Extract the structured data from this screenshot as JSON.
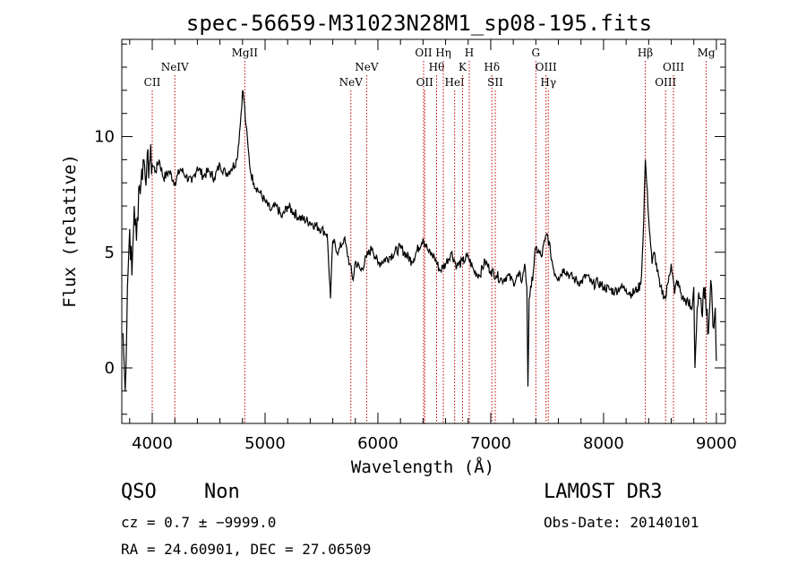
{
  "chart_data": {
    "type": "line",
    "title": "spec-56659-M31023N28M1_sp08-195.fits",
    "xlabel": "Wavelength (Å)",
    "ylabel": "Flux (relative)",
    "xlim": [
      3730,
      9080
    ],
    "ylim": [
      -2.4,
      14.2
    ],
    "xticks": [
      4000,
      5000,
      6000,
      7000,
      8000,
      9000
    ],
    "yticks": [
      0,
      5,
      10
    ],
    "grid": false,
    "series": [
      {
        "name": "flux",
        "x": [
          3740,
          3760,
          3780,
          3800,
          3820,
          3840,
          3860,
          3880,
          3900,
          3920,
          3950,
          3980,
          4000,
          4030,
          4060,
          4100,
          4150,
          4200,
          4250,
          4300,
          4350,
          4400,
          4450,
          4500,
          4550,
          4600,
          4650,
          4700,
          4750,
          4780,
          4800,
          4815,
          4830,
          4850,
          4870,
          4900,
          4950,
          5000,
          5050,
          5100,
          5150,
          5200,
          5300,
          5400,
          5500,
          5550,
          5580,
          5600,
          5650,
          5700,
          5750,
          5780,
          5800,
          5850,
          5900,
          5950,
          6000,
          6100,
          6200,
          6300,
          6400,
          6450,
          6500,
          6550,
          6600,
          6650,
          6700,
          6750,
          6800,
          6850,
          6900,
          6950,
          7000,
          7050,
          7100,
          7150,
          7200,
          7250,
          7280,
          7300,
          7310,
          7320,
          7330,
          7340,
          7360,
          7400,
          7450,
          7480,
          7500,
          7530,
          7560,
          7600,
          7650,
          7700,
          7750,
          7800,
          7850,
          7900,
          7950,
          8000,
          8050,
          8100,
          8150,
          8200,
          8250,
          8300,
          8330,
          8350,
          8370,
          8400,
          8430,
          8450,
          8500,
          8550,
          8580,
          8600,
          8630,
          8650,
          8700,
          8750,
          8780,
          8800,
          8810,
          8830,
          8850,
          8870,
          8900,
          8930,
          8950,
          8970,
          8990,
          9000
        ],
        "y": [
          1.5,
          -1.0,
          3.5,
          6.0,
          4.0,
          7.0,
          5.5,
          7.8,
          8.0,
          9.0,
          8.5,
          9.0,
          8.8,
          8.5,
          9.0,
          8.2,
          8.5,
          8.0,
          8.6,
          8.3,
          8.0,
          8.7,
          8.3,
          8.5,
          8.2,
          8.8,
          8.4,
          8.6,
          9.0,
          10.5,
          12.0,
          11.5,
          10.5,
          9.5,
          8.5,
          8.0,
          7.6,
          7.2,
          6.8,
          7.0,
          6.5,
          7.0,
          6.5,
          6.3,
          6.0,
          5.8,
          3.0,
          5.5,
          5.0,
          5.6,
          4.5,
          3.8,
          4.6,
          4.2,
          4.8,
          5.2,
          4.5,
          4.8,
          5.2,
          4.6,
          5.6,
          5.0,
          4.8,
          4.2,
          4.5,
          5.0,
          4.4,
          4.6,
          4.8,
          4.2,
          4.0,
          4.6,
          4.2,
          4.0,
          3.8,
          4.0,
          3.7,
          4.0,
          3.8,
          4.5,
          4.0,
          3.5,
          -0.8,
          3.0,
          3.5,
          5.2,
          4.8,
          5.5,
          5.8,
          5.0,
          4.2,
          3.9,
          4.3,
          4.0,
          3.8,
          3.7,
          4.0,
          3.6,
          3.7,
          3.5,
          3.4,
          3.3,
          3.5,
          3.4,
          3.2,
          3.4,
          3.6,
          5.5,
          9.0,
          6.5,
          4.5,
          5.0,
          3.5,
          3.0,
          4.0,
          4.5,
          3.2,
          3.8,
          3.0,
          2.8,
          2.5,
          3.5,
          0.0,
          2.6,
          3.0,
          2.4,
          3.5,
          1.5,
          3.8,
          1.8,
          2.6,
          0.3
        ]
      }
    ],
    "lines": [
      {
        "label": "CII",
        "x": 4000,
        "row": 3
      },
      {
        "label": "NeIV",
        "x": 4200,
        "row": 2
      },
      {
        "label": "MgII",
        "x": 4820,
        "row": 1
      },
      {
        "label": "NeV",
        "x": 5760,
        "row": 3
      },
      {
        "label": "NeV",
        "x": 5900,
        "row": 2
      },
      {
        "label": "OII",
        "x": 6405,
        "row": 1
      },
      {
        "label": "OII",
        "x": 6415,
        "row": 3
      },
      {
        "label": "Hθ",
        "x": 6520,
        "row": 2
      },
      {
        "label": "Hη",
        "x": 6580,
        "row": 1
      },
      {
        "label": "HeI",
        "x": 6680,
        "row": 3
      },
      {
        "label": "K",
        "x": 6750,
        "row": 2
      },
      {
        "label": "H",
        "x": 6810,
        "row": 1
      },
      {
        "label": "Hδ",
        "x": 7010,
        "row": 2
      },
      {
        "label": "SII",
        "x": 7040,
        "row": 3
      },
      {
        "label": "G",
        "x": 7400,
        "row": 1
      },
      {
        "label": "OIII",
        "x": 7490,
        "row": 2
      },
      {
        "label": "Hγ",
        "x": 7510,
        "row": 3
      },
      {
        "label": "Hβ",
        "x": 8370,
        "row": 1
      },
      {
        "label": "OIII",
        "x": 8550,
        "row": 3
      },
      {
        "label": "OIII",
        "x": 8620,
        "row": 2
      },
      {
        "label": "Mg",
        "x": 8910,
        "row": 1
      }
    ]
  },
  "info": {
    "class": "QSO",
    "subclass": "Non",
    "cz": "cz = 0.7 ± −9999.0",
    "radec": "RA =  24.60901, DEC =  27.06509",
    "survey": "LAMOST DR3",
    "obs_date": "Obs-Date: 20140101"
  }
}
